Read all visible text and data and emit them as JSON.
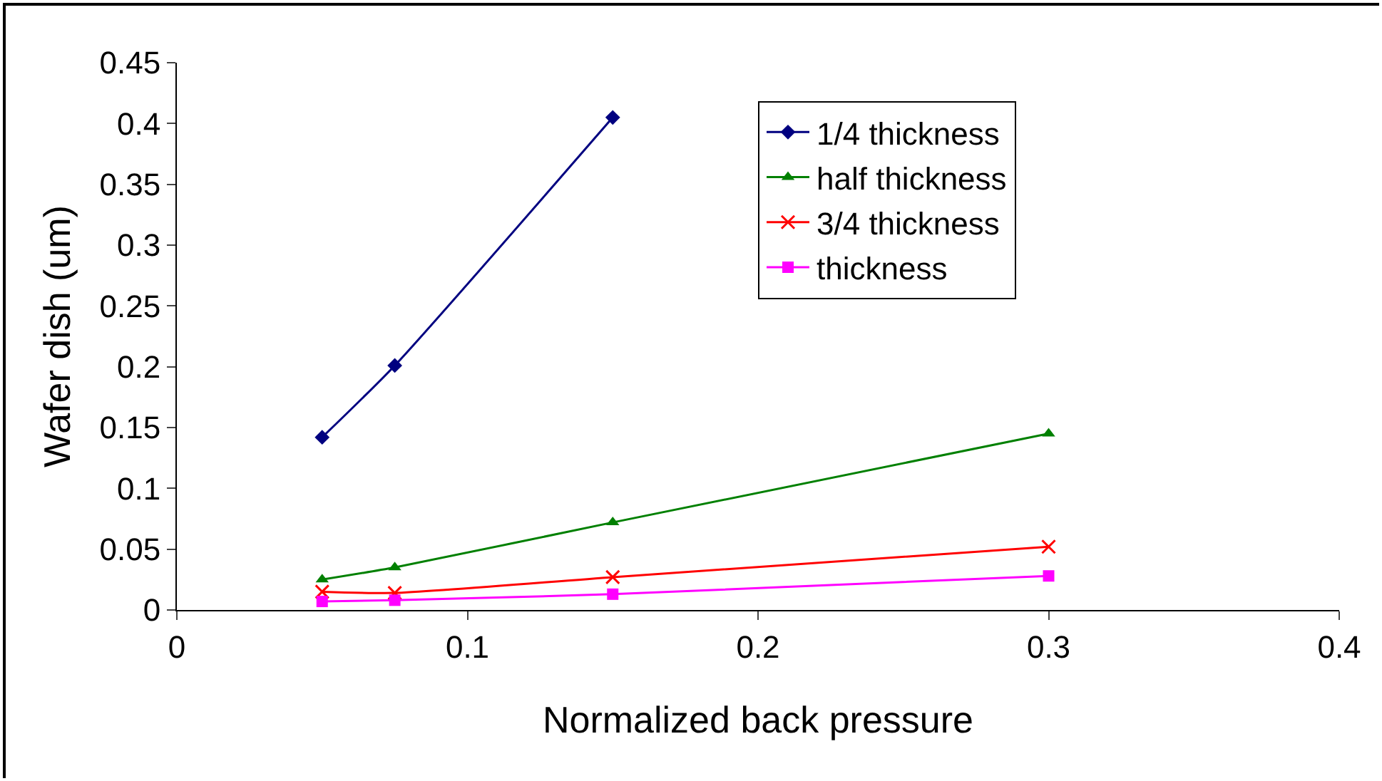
{
  "chart_data": {
    "type": "line",
    "xlabel": "Normalized back pressure",
    "ylabel": "Wafer dish (um)",
    "x": [
      0.05,
      0.075,
      0.15,
      0.3
    ],
    "series": [
      {
        "name": "1/4 thickness",
        "color": "#000080",
        "marker": "diamond",
        "x": [
          0.05,
          0.075,
          0.15
        ],
        "values": [
          0.142,
          0.201,
          0.405
        ]
      },
      {
        "name": "half thickness",
        "color": "#008000",
        "marker": "triangle",
        "values": [
          0.025,
          0.035,
          0.072,
          0.145
        ]
      },
      {
        "name": "3/4 thickness",
        "color": "#ff0000",
        "marker": "cross",
        "values": [
          0.015,
          0.014,
          0.027,
          0.052
        ]
      },
      {
        "name": "thickness",
        "color": "#ff00ff",
        "marker": "square",
        "values": [
          0.007,
          0.008,
          0.013,
          0.028
        ]
      }
    ],
    "xlim": [
      0,
      0.4
    ],
    "xticks": [
      0,
      0.1,
      0.2,
      0.3,
      0.4
    ],
    "ylim": [
      0,
      0.45
    ],
    "yticks": [
      0,
      0.05,
      0.1,
      0.15,
      0.2,
      0.25,
      0.3,
      0.35,
      0.4,
      0.45
    ],
    "grid": false,
    "legend": "top right",
    "line_style": "solid"
  }
}
